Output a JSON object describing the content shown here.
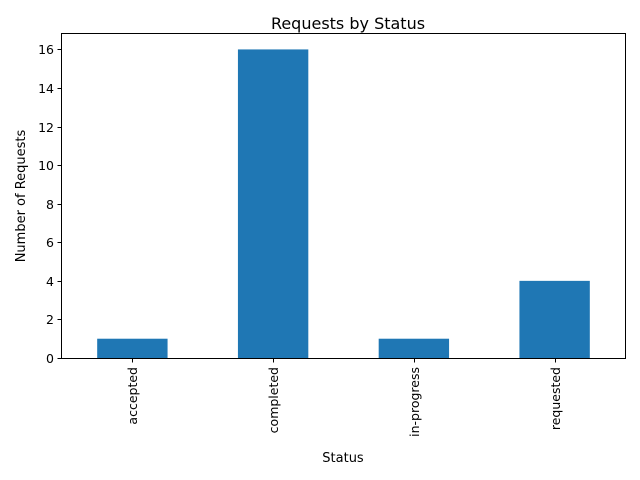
{
  "chart_data": {
    "type": "bar",
    "title": "Requests by Status",
    "xlabel": "Status",
    "ylabel": "Number of Requests",
    "categories": [
      "accepted",
      "completed",
      "in-progress",
      "requested"
    ],
    "values": [
      1,
      16,
      1,
      4
    ],
    "ylim": [
      0,
      16.8
    ],
    "yticks": [
      0,
      2,
      4,
      6,
      8,
      10,
      12,
      14,
      16
    ],
    "bar_color": "#1f77b4",
    "grid": false,
    "legend": "none"
  }
}
